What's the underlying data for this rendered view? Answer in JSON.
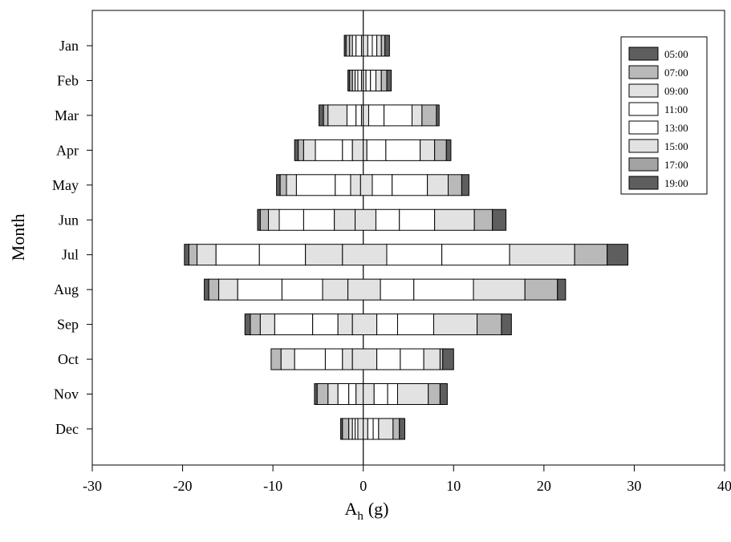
{
  "chart_data": {
    "type": "bar",
    "orientation": "horizontal",
    "stacked": "diverging",
    "xlabel_main": "A",
    "xlabel_sub": "h",
    "xlabel_unit": "(g)",
    "ylabel": "Month",
    "xlim": [
      -30,
      40
    ],
    "xticks": [
      "-30",
      "-20",
      "-10",
      "0",
      "10",
      "20",
      "30",
      "40"
    ],
    "xtick_values": [
      -30,
      -20,
      -10,
      0,
      10,
      20,
      30,
      40
    ],
    "categories": [
      "Jan",
      "Feb",
      "Mar",
      "Apr",
      "May",
      "Jun",
      "Jul",
      "Aug",
      "Sep",
      "Oct",
      "Nov",
      "Dec"
    ],
    "legend_position": "top-right",
    "series": [
      {
        "name": "05:00",
        "color": "#5e5e5e"
      },
      {
        "name": "07:00",
        "color": "#b9b9b9"
      },
      {
        "name": "09:00",
        "color": "#e2e2e2"
      },
      {
        "name": "11:00",
        "color": "#ffffff"
      },
      {
        "name": "13:00",
        "color": "#ffffff"
      },
      {
        "name": "15:00",
        "color": "#e2e2e2"
      },
      {
        "name": "17:00",
        "color": "#a3a3a3"
      },
      {
        "name": "19:00",
        "color": "#5e5e5e"
      }
    ],
    "boundaries": [
      [
        -2.1,
        -1.9,
        -1.5,
        -1.2,
        -0.8,
        -0.2,
        0,
        0.5,
        1.0,
        1.5,
        2.0,
        2.4,
        2.9
      ],
      [
        -1.7,
        -1.5,
        -1.2,
        -0.9,
        -0.6,
        -0.2,
        0,
        0.3,
        0.8,
        1.4,
        2.0,
        2.6,
        3.1
      ],
      [
        -4.9,
        -4.4,
        -3.9,
        -1.8,
        -0.8,
        -0.2,
        0,
        0.6,
        2.3,
        5.4,
        6.5,
        8.1,
        8.4
      ],
      [
        -7.6,
        -7.2,
        -6.6,
        -5.3,
        -2.3,
        -1.2,
        0,
        0.4,
        2.5,
        6.3,
        7.9,
        9.2,
        9.7
      ],
      [
        -9.6,
        -9.2,
        -8.5,
        -7.4,
        -3.1,
        -1.4,
        -0.3,
        1.0,
        3.2,
        7.1,
        9.4,
        10.9,
        11.7
      ],
      [
        -11.7,
        -11.4,
        -10.5,
        -9.3,
        -6.6,
        -3.2,
        -0.9,
        1.4,
        4.0,
        7.9,
        12.3,
        14.3,
        15.8
      ],
      [
        -19.8,
        -19.3,
        -18.4,
        -16.3,
        -11.5,
        -6.4,
        -2.3,
        2.6,
        8.7,
        16.2,
        23.4,
        27.0,
        29.3
      ],
      [
        -17.6,
        -17.1,
        -16.0,
        -13.9,
        -9.0,
        -4.5,
        -1.7,
        1.9,
        5.6,
        12.2,
        17.9,
        21.5,
        22.4
      ],
      [
        -13.1,
        -12.5,
        -11.4,
        -9.8,
        -5.6,
        -2.8,
        -1.2,
        1.5,
        3.8,
        7.8,
        12.6,
        15.3,
        16.4
      ],
      [
        -10.2,
        -10.2,
        -9.1,
        -7.6,
        -4.2,
        -2.3,
        -1.2,
        1.5,
        4.1,
        6.7,
        8.5,
        8.8,
        10.0
      ],
      [
        -5.4,
        -5.1,
        -3.9,
        -2.8,
        -1.6,
        -0.8,
        0,
        1.2,
        2.7,
        3.8,
        7.2,
        8.5,
        9.3
      ],
      [
        -2.5,
        -2.3,
        -1.6,
        -1.2,
        -0.9,
        -0.6,
        0,
        0.5,
        1.1,
        1.7,
        3.3,
        4.0,
        4.6
      ]
    ],
    "segment_series": [
      0,
      1,
      2,
      3,
      4,
      5,
      5,
      4,
      3,
      2,
      1,
      0
    ]
  }
}
